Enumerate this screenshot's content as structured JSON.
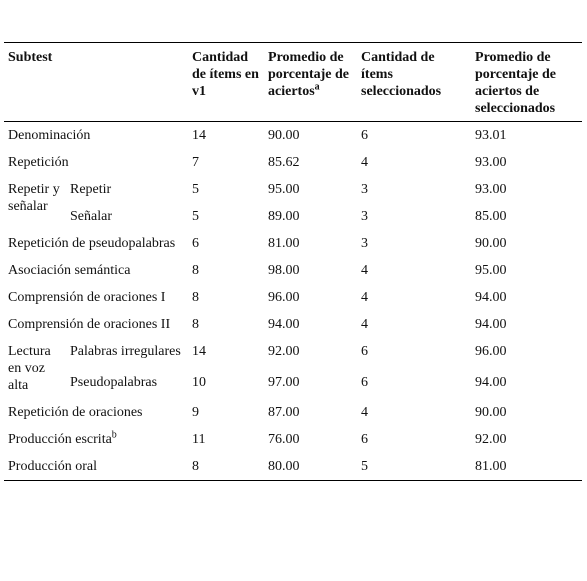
{
  "table": {
    "columns": [
      "Subtest",
      "Cantidad de ítems en v1",
      {
        "text": "Promedio de porcentaje de aciertos",
        "note": "a"
      },
      "Cantidad de ítems seleccionados",
      "Promedio de porcentaje de aciertos de seleccionados"
    ],
    "rows": [
      {
        "subtest": "Denominación",
        "values": [
          "14",
          "90.00",
          "6",
          "93.01"
        ]
      },
      {
        "subtest": "Repetición",
        "values": [
          "7",
          "85.62",
          "4",
          "93.00"
        ]
      },
      {
        "group": "Repetir y señalar",
        "rows": [
          {
            "subtest": "Repetir",
            "values": [
              "5",
              "95.00",
              "3",
              "93.00"
            ]
          },
          {
            "subtest": "Señalar",
            "values": [
              "5",
              "89.00",
              "3",
              "85.00"
            ]
          }
        ]
      },
      {
        "subtest": "Repetición de pseudopalabras",
        "values": [
          "6",
          "81.00",
          "3",
          "90.00"
        ]
      },
      {
        "subtest": "Asociación semántica",
        "values": [
          "8",
          "98.00",
          "4",
          "95.00"
        ]
      },
      {
        "subtest": "Comprensión de oraciones I",
        "values": [
          "8",
          "96.00",
          "4",
          "94.00"
        ]
      },
      {
        "subtest": "Comprensión de oraciones II",
        "values": [
          "8",
          "94.00",
          "4",
          "94.00"
        ]
      },
      {
        "group": "Lectura en voz alta",
        "rows": [
          {
            "subtest": "Palabras irregulares",
            "values": [
              "14",
              "92.00",
              "6",
              "96.00"
            ]
          },
          {
            "subtest": "Pseudopalabras",
            "values": [
              "10",
              "97.00",
              "6",
              "94.00"
            ]
          }
        ]
      },
      {
        "subtest": "Repetición de oraciones",
        "values": [
          "9",
          "87.00",
          "4",
          "90.00"
        ]
      },
      {
        "subtest": "Producción escrita",
        "note": "b",
        "values": [
          "11",
          "76.00",
          "6",
          "92.00"
        ]
      },
      {
        "subtest": "Producción oral",
        "values": [
          "8",
          "80.00",
          "5",
          "81.00"
        ]
      }
    ]
  }
}
